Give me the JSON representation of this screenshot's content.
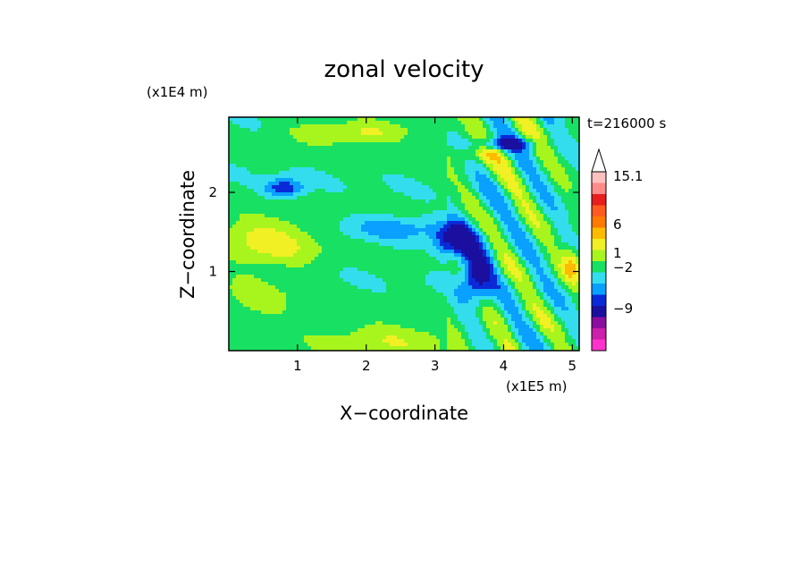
{
  "chart_data": {
    "type": "heatmap",
    "title": "zonal velocity",
    "xlabel": "X−coordinate",
    "ylabel": "Z−coordinate",
    "x_unit": "(x1E5 m)",
    "y_unit": "(x1E4 m)",
    "time_label": "t=216000 s",
    "xlim": [
      0,
      5.1
    ],
    "ylim": [
      0,
      2.95
    ],
    "x_ticks": [
      {
        "value": 1,
        "label": "1"
      },
      {
        "value": 2,
        "label": "2"
      },
      {
        "value": 3,
        "label": "3"
      },
      {
        "value": 4,
        "label": "4"
      },
      {
        "value": 5,
        "label": "5"
      }
    ],
    "y_ticks": [
      {
        "value": 1,
        "label": "1"
      },
      {
        "value": 2,
        "label": "2"
      }
    ],
    "colorbar": {
      "colors": [
        "#ff33cc",
        "#cc1faa",
        "#8b0f9e",
        "#1a0f9e",
        "#0a2ad8",
        "#0aa0ff",
        "#33ddee",
        "#18e062",
        "#a8f51e",
        "#f0f024",
        "#ffbb00",
        "#ff7a00",
        "#ff5a20",
        "#e81e1e",
        "#ff8a8a",
        "#ffc0c0"
      ],
      "labels": [
        {
          "text": "15.1",
          "value": 15.1
        },
        {
          "text": "6",
          "value": 6
        },
        {
          "text": "1",
          "value": 1
        },
        {
          "text": "−2",
          "value": -2
        },
        {
          "text": "−9",
          "value": -9
        }
      ],
      "extend_max": true
    }
  }
}
